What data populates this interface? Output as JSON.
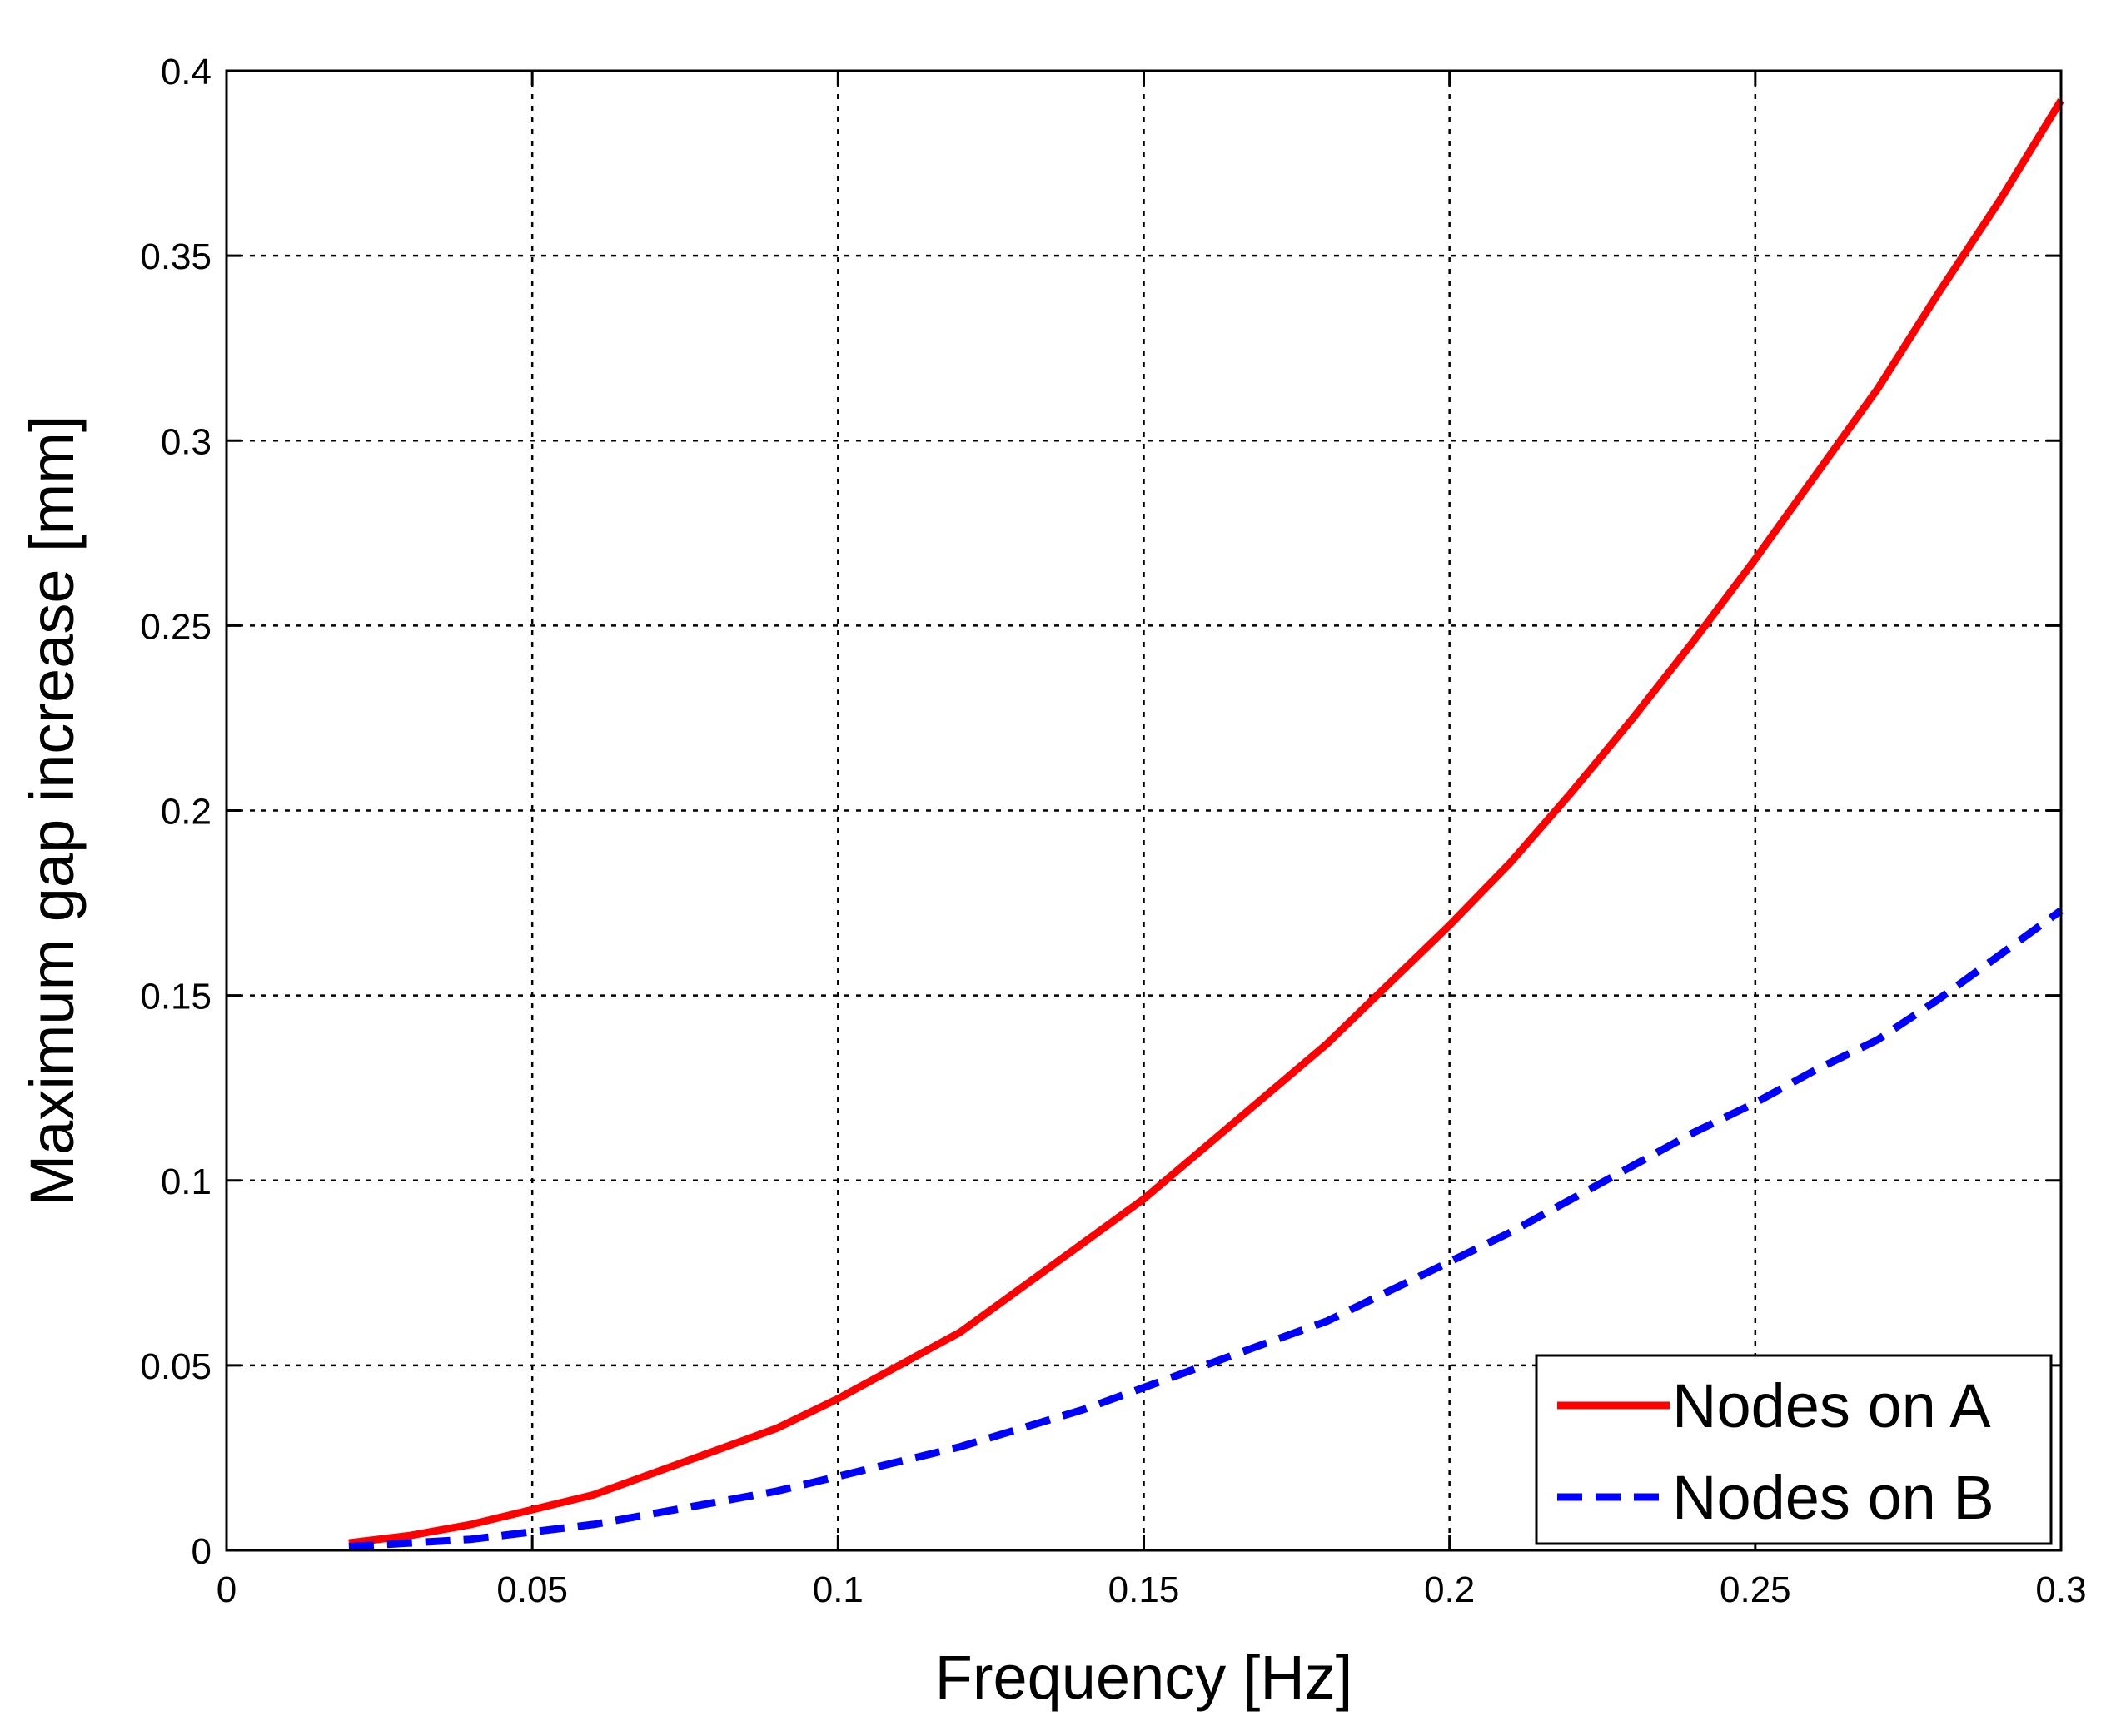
{
  "chart_data": {
    "type": "line",
    "title": "",
    "xlabel": "Frequency [Hz]",
    "ylabel": "Maximum gap increase [mm]",
    "xlim": [
      0,
      0.3
    ],
    "ylim": [
      0,
      0.4
    ],
    "xticks": [
      0,
      0.05,
      0.1,
      0.15,
      0.2,
      0.25,
      0.3
    ],
    "xtick_labels": [
      "0",
      "0.05",
      "0.1",
      "0.15",
      "0.2",
      "0.25",
      "0.3"
    ],
    "yticks": [
      0,
      0.05,
      0.1,
      0.15,
      0.2,
      0.25,
      0.3,
      0.35,
      0.4
    ],
    "ytick_labels": [
      "0",
      "0.05",
      "0.1",
      "0.15",
      "0.2",
      "0.25",
      "0.3",
      "0.35",
      "0.4"
    ],
    "grid": true,
    "legend_position": "bottom-right",
    "series": [
      {
        "name": "Nodes on A",
        "color": "#ff0000",
        "line_style": "solid",
        "x": [
          0.02,
          0.03,
          0.04,
          0.05,
          0.06,
          0.07,
          0.08,
          0.09,
          0.1,
          0.11,
          0.12,
          0.13,
          0.14,
          0.15,
          0.16,
          0.17,
          0.18,
          0.19,
          0.2,
          0.21,
          0.22,
          0.23,
          0.24,
          0.25,
          0.26,
          0.27,
          0.28,
          0.29,
          0.3
        ],
        "y": [
          0.002,
          0.004,
          0.007,
          0.011,
          0.015,
          0.021,
          0.027,
          0.033,
          0.041,
          0.05,
          0.059,
          0.071,
          0.083,
          0.095,
          0.109,
          0.123,
          0.137,
          0.153,
          0.169,
          0.186,
          0.205,
          0.225,
          0.246,
          0.268,
          0.291,
          0.314,
          0.34,
          0.365,
          0.392
        ]
      },
      {
        "name": "Nodes on B",
        "color": "#0000ff",
        "line_style": "dashed",
        "x": [
          0.02,
          0.03,
          0.04,
          0.05,
          0.06,
          0.07,
          0.08,
          0.09,
          0.1,
          0.11,
          0.12,
          0.13,
          0.14,
          0.15,
          0.16,
          0.17,
          0.18,
          0.19,
          0.2,
          0.21,
          0.22,
          0.23,
          0.24,
          0.25,
          0.26,
          0.27,
          0.28,
          0.29,
          0.3
        ],
        "y": [
          0.001,
          0.002,
          0.003,
          0.005,
          0.007,
          0.01,
          0.013,
          0.016,
          0.02,
          0.024,
          0.028,
          0.033,
          0.038,
          0.044,
          0.05,
          0.056,
          0.062,
          0.07,
          0.078,
          0.086,
          0.095,
          0.104,
          0.113,
          0.121,
          0.13,
          0.138,
          0.149,
          0.161,
          0.173
        ]
      }
    ]
  }
}
